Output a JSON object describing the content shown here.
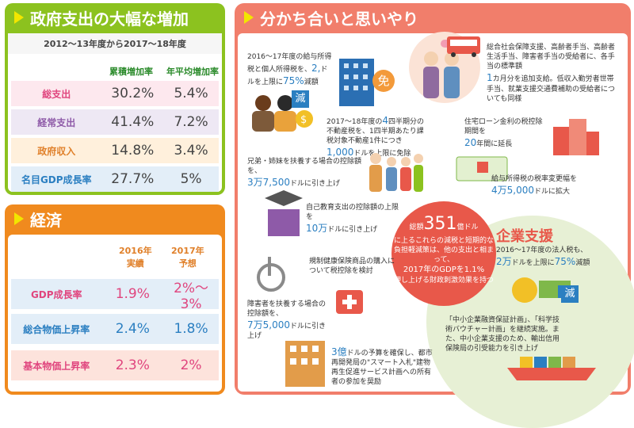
{
  "gov": {
    "title": "政府支出の大幅な増加",
    "period": "2012～13年度から2017～18年度",
    "col1": "累積増加率",
    "col2": "年平均増加率",
    "rows": [
      {
        "label": "総支出",
        "v1": "30.2%",
        "v2": "5.4%"
      },
      {
        "label": "経常支出",
        "v1": "41.4%",
        "v2": "7.2%"
      },
      {
        "label": "政府収入",
        "v1": "14.8%",
        "v2": "3.4%"
      },
      {
        "label": "名目GDP成長率",
        "v1": "27.7%",
        "v2": "5%"
      }
    ],
    "colors": {
      "header": "#8cc21f",
      "row1": "#fde8ee",
      "row2": "#eee8f4",
      "row3": "#fff0dc",
      "row4": "#e3eef8"
    }
  },
  "econ": {
    "title": "経済",
    "col1": "2016年\n実績",
    "col2": "2017年\n予想",
    "rows": [
      {
        "label": "GDP成長率",
        "v1": "1.9%",
        "v2": "2%～3%"
      },
      {
        "label": "総合物価上昇率",
        "v1": "2.4%",
        "v2": "1.8%"
      },
      {
        "label": "基本物価上昇率",
        "v1": "2.3%",
        "v2": "2%"
      }
    ],
    "colors": {
      "header": "#f08a1e",
      "row1": "#e3eef8",
      "row2": "#e3eef8",
      "row3": "#fde3dc"
    }
  },
  "share": {
    "title": "分かち合いと思いやり",
    "blocks": {
      "b1": {
        "pre": "2016～17年度の給与所得税と個人所得税を、",
        "num": "2,",
        "mid": "ドルを上限に",
        "num2": "75%",
        "post": "減額"
      },
      "b2": {
        "pre": "2017～18年度の",
        "num": "4",
        "mid": "四半期分の不動産税を、1四半期あたり課税対象不動産1件につき",
        "num2": "1,000",
        "post": "ドルを上限に免除"
      },
      "b3": {
        "text": "総合社会保障支援、高齢者手当、高齢者生活手当、障害者手当の受給者に、各手当の標準額",
        "num": "1",
        "post": "カ月分を追加支給。低収入勤労者世帯手当、就業支援交通費補助の受給者についても同様"
      },
      "b4": {
        "pre": "住宅ローン金利の税控除期間を",
        "num": "20",
        "post": "年間に延長"
      },
      "b5": {
        "pre": "兄弟・姉妹を扶養する場合の控除額を、",
        "num": "3万7,500",
        "post": "ドルに引き上げ"
      },
      "b6": {
        "pre": "給与所得税の税率変更幅を",
        "num": "4万5,000",
        "post": "ドルに拡大"
      },
      "b7": {
        "pre": "自己教育支出の控除額の上限を",
        "num": "10万",
        "post": "ドルに引き上げ"
      },
      "b8": {
        "text": "規制健康保険商品の購入について税控除を検討"
      },
      "b9": {
        "pre": "障害者を扶養する場合の控除額を、",
        "num": "7万5,000",
        "post": "ドルに引き上げ"
      },
      "b10": {
        "num": "3億",
        "post": "ドルの予算を確保し、都市再開発局の\"スマート入札\"建物再生促進サービス計画への所有者の参加を奨励"
      }
    },
    "center": {
      "pre": "総額",
      "num": "351",
      "unit": "億ドル",
      "text": "に上るこれらの減税と短期的な負担軽減策は、他の支出と相まって、",
      "gdp": "2017年のGDPを1.1%",
      "post": "押し上げる財政刺激効果を持つ"
    },
    "icon_labels": {
      "gen": "減",
      "men": "免",
      "gen2": "減"
    }
  },
  "kigyo": {
    "title": "企業支援",
    "b1": {
      "pre": "2016～17年度の法人税も、",
      "num": "2万",
      "mid": "ドルを上限に",
      "num2": "75%",
      "post": "減額"
    },
    "b2": {
      "text": "「中小企業融資保証計画」、「科学技術バウチャー計画」を継続実施。また、中小企業支援のため、輸出信用保険局の引受能力を引き上げ"
    }
  }
}
